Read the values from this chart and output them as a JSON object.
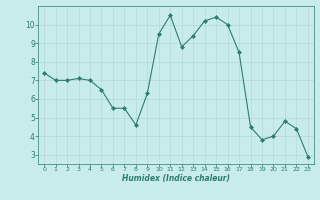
{
  "x": [
    0,
    1,
    2,
    3,
    4,
    5,
    6,
    7,
    8,
    9,
    10,
    11,
    12,
    13,
    14,
    15,
    16,
    17,
    18,
    19,
    20,
    21,
    22,
    23
  ],
  "y": [
    7.4,
    7.0,
    7.0,
    7.1,
    7.0,
    6.5,
    5.5,
    5.5,
    4.6,
    6.3,
    9.5,
    10.5,
    8.8,
    9.4,
    10.2,
    10.4,
    10.0,
    8.5,
    4.5,
    3.8,
    4.0,
    4.8,
    4.4,
    2.9
  ],
  "line_color": "#2e7d6e",
  "marker": "D",
  "marker_size": 2.0,
  "bg_color": "#c8ecec",
  "grid_color": "#b8d8d0",
  "xlabel": "Humidex (Indice chaleur)",
  "xlim": [
    -0.5,
    23.5
  ],
  "ylim": [
    2.5,
    11.0
  ],
  "yticks": [
    3,
    4,
    5,
    6,
    7,
    8,
    9,
    10
  ],
  "xticks": [
    0,
    1,
    2,
    3,
    4,
    5,
    6,
    7,
    8,
    9,
    10,
    11,
    12,
    13,
    14,
    15,
    16,
    17,
    18,
    19,
    20,
    21,
    22,
    23
  ],
  "tick_color": "#2e7d6e",
  "spine_color": "#2e7d6e"
}
